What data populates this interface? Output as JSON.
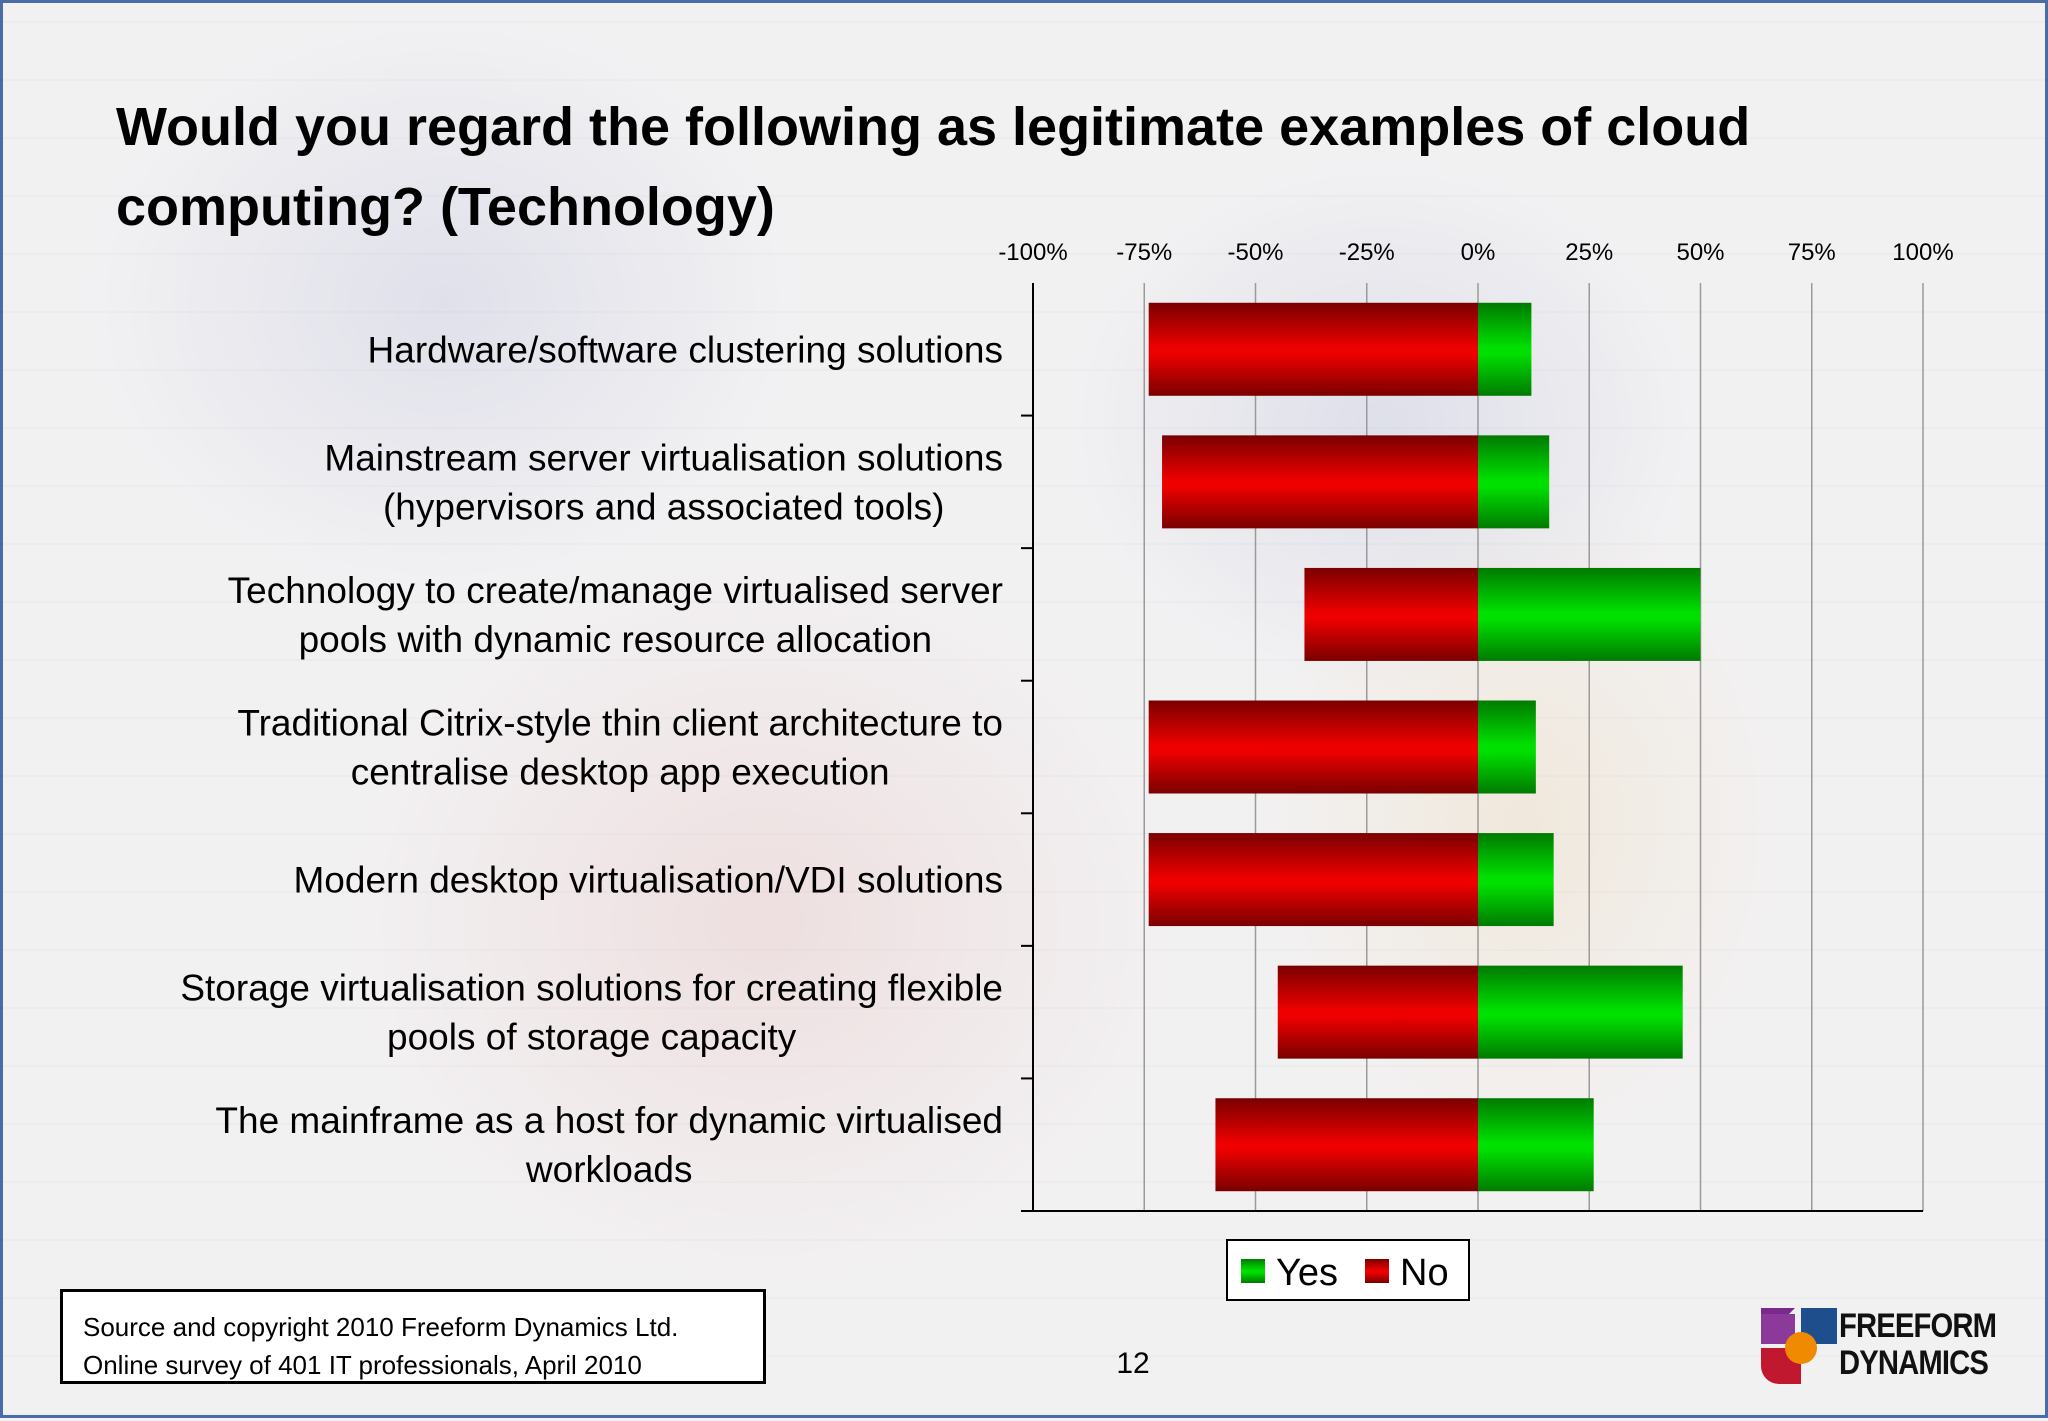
{
  "slide": {
    "title": "Would you regard the following as legitimate examples of cloud computing? (Technology)",
    "source_line1": "Source and copyright 2010 Freeform Dynamics Ltd.",
    "source_line2": "Online survey of 401 IT professionals, April 2010",
    "page_number": "12",
    "logo_line1": "FREEFORM",
    "logo_line2": "DYNAMICS"
  },
  "chart_data": {
    "type": "bar",
    "orientation": "horizontal",
    "stacked": "diverging",
    "title": "",
    "xlabel": "",
    "ylabel": "",
    "xlim": [
      -100,
      100
    ],
    "tick_values": [
      -100,
      -75,
      -50,
      -25,
      0,
      25,
      50,
      75,
      100
    ],
    "tick_labels": [
      "-100%",
      "-75%",
      "-50%",
      "-25%",
      "0%",
      "25%",
      "50%",
      "75%",
      "100%"
    ],
    "grid": true,
    "legend_position": "bottom",
    "categories": [
      [
        "Hardware/software clustering solutions"
      ],
      [
        "Mainstream server virtualisation solutions",
        "(hypervisors and associated tools)"
      ],
      [
        "Technology to create/manage virtualised server",
        "pools with dynamic resource allocation"
      ],
      [
        "Traditional Citrix-style thin client architecture to",
        "centralise desktop app execution"
      ],
      [
        "Modern desktop virtualisation/VDI solutions"
      ],
      [
        "Storage virtualisation solutions for creating flexible",
        "pools of storage capacity"
      ],
      [
        "The mainframe as a host for dynamic virtualised",
        "workloads"
      ]
    ],
    "series": [
      {
        "name": "Yes",
        "color": "#00e000",
        "values": [
          12,
          16,
          50,
          13,
          17,
          46,
          26
        ]
      },
      {
        "name": "No",
        "color": "#ee0000",
        "values": [
          -74,
          -71,
          -39,
          -74,
          -74,
          -45,
          -59
        ]
      }
    ]
  }
}
